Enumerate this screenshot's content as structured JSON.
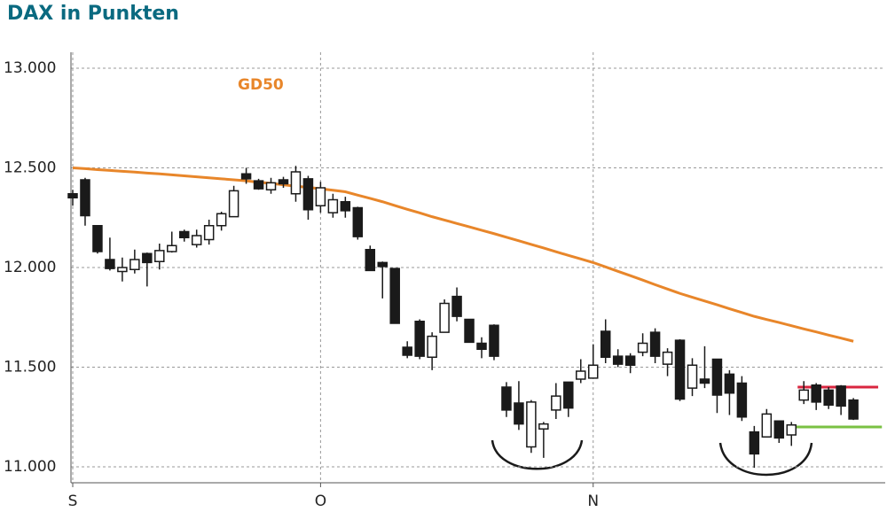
{
  "chart_data": {
    "type": "candlestick",
    "title": "DAX in Punkten",
    "categories": [
      "S",
      null,
      null,
      null,
      null,
      null,
      null,
      null,
      null,
      null,
      null,
      null,
      null,
      null,
      null,
      null,
      null,
      null,
      null,
      null,
      "O",
      null,
      null,
      null,
      null,
      null,
      null,
      null,
      null,
      null,
      null,
      null,
      null,
      null,
      null,
      null,
      null,
      null,
      null,
      null,
      null,
      null,
      "N",
      null,
      null,
      null,
      null,
      null,
      null,
      null,
      null,
      null,
      null,
      null,
      null,
      null,
      null,
      null,
      null,
      null,
      null,
      null,
      null,
      null
    ],
    "open": [
      12370,
      12440,
      12210,
      12040,
      11980,
      11990,
      12070,
      12030,
      12080,
      12180,
      12115,
      12140,
      12210,
      12255,
      12470,
      12435,
      12390,
      12440,
      12370,
      12445,
      12310,
      12275,
      12330,
      12300,
      12090,
      12025,
      11995,
      11600,
      11730,
      11550,
      11675,
      11855,
      11740,
      11620,
      11710,
      11400,
      11320,
      11100,
      11190,
      11285,
      11425,
      11440,
      11445,
      11680,
      11555,
      11555,
      11575,
      11675,
      11515,
      11635,
      11395,
      11440,
      11540,
      11465,
      11420,
      11175,
      11150,
      11230,
      11160,
      11335,
      11410,
      11385,
      11405,
      11335
    ],
    "high": [
      12390,
      12450,
      12210,
      12150,
      12050,
      12090,
      12075,
      12120,
      12180,
      12190,
      12190,
      12240,
      12280,
      12410,
      12500,
      12445,
      12450,
      12455,
      12510,
      12460,
      12430,
      12370,
      12355,
      12305,
      12110,
      12030,
      11995,
      11630,
      11740,
      11675,
      11840,
      11900,
      11740,
      11650,
      11715,
      11425,
      11430,
      11335,
      11225,
      11420,
      11425,
      11540,
      11615,
      11740,
      11590,
      11570,
      11670,
      11695,
      11595,
      11640,
      11545,
      11605,
      11540,
      11485,
      11455,
      11205,
      11290,
      11230,
      11225,
      11430,
      11420,
      11400,
      11410,
      11345
    ],
    "low": [
      12310,
      12210,
      12070,
      11985,
      11930,
      11970,
      11905,
      11990,
      12075,
      12130,
      12100,
      12115,
      12185,
      12255,
      12420,
      12390,
      12370,
      12400,
      12330,
      12240,
      12275,
      12250,
      12250,
      12140,
      11985,
      11845,
      11720,
      11545,
      11540,
      11485,
      11675,
      11730,
      11625,
      11545,
      11535,
      11250,
      11185,
      11070,
      11045,
      11240,
      11250,
      11420,
      11445,
      11520,
      11500,
      11470,
      11555,
      11520,
      11455,
      11330,
      11355,
      11395,
      11270,
      11260,
      11230,
      10995,
      11150,
      11120,
      11105,
      11315,
      11285,
      11290,
      11260,
      11235
    ],
    "close": [
      12350,
      12260,
      12080,
      11995,
      12000,
      12040,
      12025,
      12085,
      12110,
      12150,
      12160,
      12210,
      12270,
      12385,
      12445,
      12395,
      12425,
      12420,
      12480,
      12290,
      12400,
      12340,
      12285,
      12155,
      11985,
      12005,
      11720,
      11560,
      11555,
      11655,
      11820,
      11755,
      11625,
      11590,
      11555,
      11285,
      11215,
      11325,
      11215,
      11355,
      11295,
      11480,
      11510,
      11550,
      11515,
      11510,
      11620,
      11555,
      11575,
      11340,
      11510,
      11420,
      11360,
      11370,
      11250,
      11065,
      11265,
      11145,
      11210,
      11385,
      11325,
      11310,
      11305,
      11240
    ],
    "up_color": "#ffffff",
    "down_color": "#1a1a1a",
    "lines": [
      {
        "name": "GD50",
        "color": "#e8862a",
        "values": [
          12500,
          12496,
          12491,
          12487,
          12483,
          12479,
          12474,
          12470,
          12465,
          12460,
          12455,
          12450,
          12445,
          12440,
          12435,
          12428,
          12422,
          12415,
          12408,
          12402,
          12395,
          12388,
          12380,
          12363,
          12347,
          12330,
          12311,
          12292,
          12274,
          12255,
          12238,
          12221,
          12204,
          12187,
          12170,
          12152,
          12134,
          12116,
          12098,
          12079,
          12061,
          12043,
          12025,
          12003,
          11981,
          11959,
          11937,
          11914,
          11892,
          11870,
          11851,
          11832,
          11813,
          11793,
          11774,
          11755,
          11739,
          11724,
          11708,
          11692,
          11677,
          11661,
          11646,
          11630
        ]
      }
    ],
    "levels": [
      {
        "value": 11400,
        "color": "#d9263f",
        "xlim": [
          58.5,
          65
        ]
      },
      {
        "value": 11200,
        "color": "#7ac143",
        "xlim": [
          58,
          65.3
        ]
      }
    ],
    "ylim": [
      10920,
      13080
    ],
    "yticks": [
      {
        "value": 11000,
        "label": "11.000"
      },
      {
        "value": 11500,
        "label": "11.500"
      },
      {
        "value": 12000,
        "label": "12.000"
      },
      {
        "value": 12500,
        "label": "12.500"
      },
      {
        "value": 13000,
        "label": "13.000"
      }
    ],
    "grid": true
  }
}
